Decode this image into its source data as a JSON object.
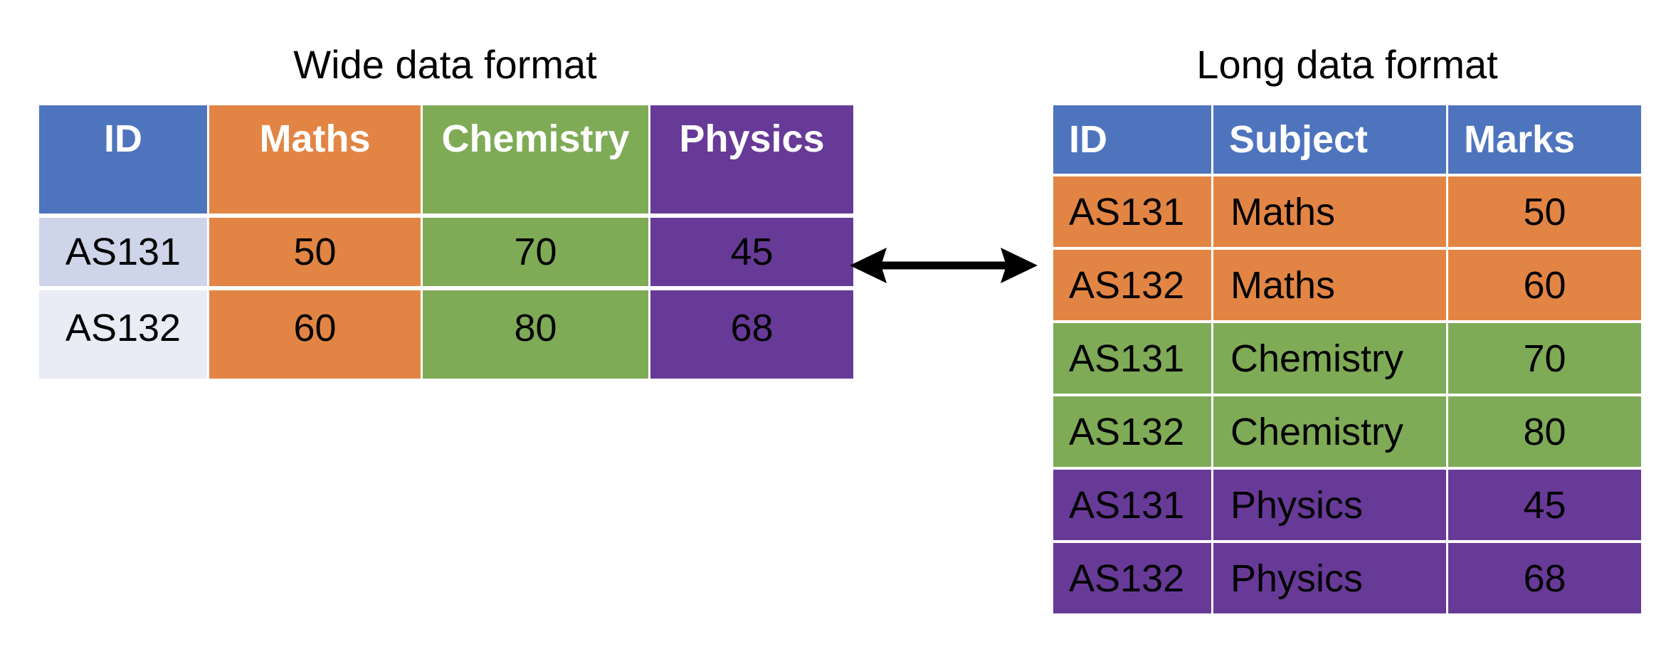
{
  "colors": {
    "id_header": "#4E74BE",
    "maths": "#E28544",
    "chemistry": "#7FAB57",
    "physics": "#683A98",
    "id_row1": "#CFD5E9",
    "id_row2": "#E9EBF5"
  },
  "wide": {
    "title": "Wide data format",
    "headers": [
      "ID",
      "Maths",
      "Chemistry",
      "Physics"
    ],
    "rows": [
      [
        "AS131",
        "50",
        "70",
        "45"
      ],
      [
        "AS132",
        "60",
        "80",
        "68"
      ]
    ]
  },
  "long": {
    "title": "Long data format",
    "headers": [
      "ID",
      "Subject",
      "Marks"
    ],
    "rows": [
      [
        "AS131",
        "Maths",
        "50"
      ],
      [
        "AS132",
        "Maths",
        "60"
      ],
      [
        "AS131",
        "Chemistry",
        "70"
      ],
      [
        "AS132",
        "Chemistry",
        "80"
      ],
      [
        "AS131",
        "Physics",
        "45"
      ],
      [
        "AS132",
        "Physics",
        "68"
      ]
    ]
  },
  "connector": {
    "icon": "double-headed-arrow-icon"
  }
}
